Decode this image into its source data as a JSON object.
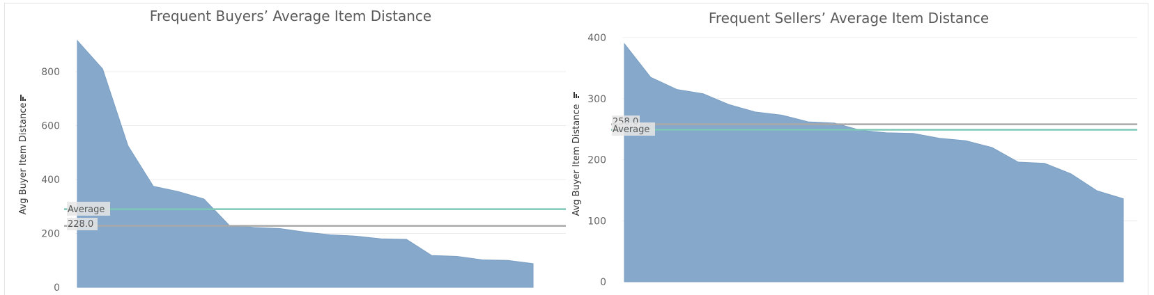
{
  "chart_data": [
    {
      "type": "area",
      "title": "Frequent Buyers’ Average Item Distance",
      "xlabel": "",
      "ylabel": "Avg Buyer Item Distance",
      "ylim": [
        0,
        950
      ],
      "yticks": [
        0,
        200,
        400,
        600,
        800
      ],
      "grid": true,
      "values": [
        915,
        810,
        525,
        375,
        355,
        328,
        230,
        222,
        218,
        205,
        195,
        190,
        180,
        178,
        118,
        115,
        102,
        100,
        88
      ],
      "color": "#86a8cb",
      "reference_lines": [
        {
          "label": "Average",
          "value": 290,
          "color": "#7ec8b8"
        },
        {
          "label": "228.0",
          "value": 228,
          "color": "#a9a9a9"
        }
      ]
    },
    {
      "type": "area",
      "title": "Frequent Sellers’ Average Item Distance",
      "xlabel": "",
      "ylabel": "Avg Buyer Item Distance",
      "ylim": [
        0,
        410
      ],
      "yticks": [
        0,
        100,
        200,
        300,
        400
      ],
      "grid": true,
      "values": [
        390,
        335,
        315,
        308,
        290,
        278,
        273,
        262,
        260,
        248,
        244,
        243,
        235,
        231,
        220,
        196,
        194,
        177,
        149,
        136
      ],
      "color": "#86a8cb",
      "reference_lines": [
        {
          "label": "258.0",
          "value": 258,
          "color": "#a9a9a9"
        },
        {
          "label": "Average",
          "value": 249,
          "color": "#7ec8b8"
        }
      ]
    }
  ]
}
